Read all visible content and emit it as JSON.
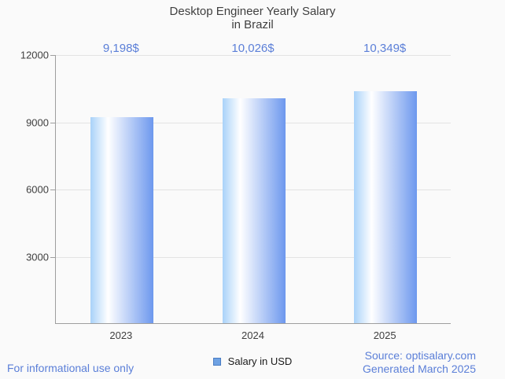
{
  "title": {
    "line1": "Desktop Engineer Yearly Salary",
    "line2": "in Brazil"
  },
  "chart_data": {
    "type": "bar",
    "title": "Desktop Engineer Yearly Salary in Brazil",
    "categories": [
      "2023",
      "2024",
      "2025"
    ],
    "series": [
      {
        "name": "Salary in USD",
        "values": [
          9198,
          10026,
          10349
        ]
      }
    ],
    "value_labels": [
      "9,198$",
      "10,026$",
      "10,349$"
    ],
    "xlabel": "",
    "ylabel": "",
    "ylim": [
      0,
      12000
    ],
    "yticks": [
      3000,
      6000,
      9000,
      12000
    ],
    "ytick_labels": [
      "3000",
      "6000",
      "9000",
      "12000"
    ],
    "grid": true,
    "legend_position": "bottom-center"
  },
  "legend": {
    "label": "Salary in USD"
  },
  "footer": {
    "left": "For informational use only",
    "source_line": "Source: optisalary.com",
    "generated_line": "Generated March 2025"
  },
  "colors": {
    "background": "#fafafa",
    "text_dark": "#3f3f3f",
    "accent_text": "#5b7fd8",
    "grid": "#e3e3e3",
    "axis": "#9e9e9e",
    "bar_edge_left": "#a9d2f9",
    "bar_center": "#ffffff",
    "bar_edge_right": "#6d98ee",
    "legend_fill": "#6fa2e3",
    "legend_border": "#4a7dc4"
  }
}
